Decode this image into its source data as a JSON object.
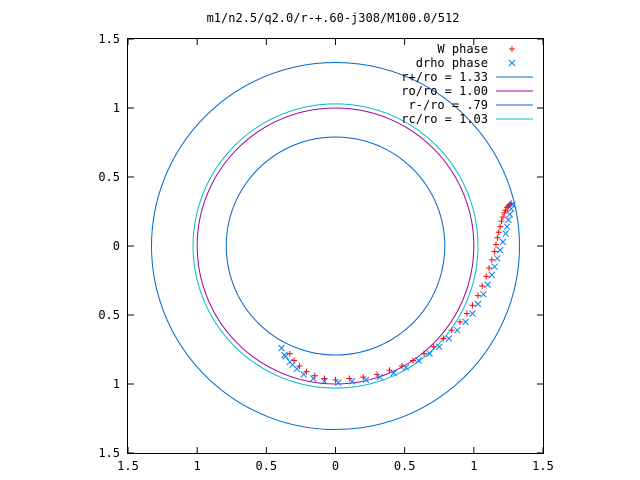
{
  "chart_data": {
    "type": "line",
    "title": "m1/n2.5/q2.0/r-+.60-j308/M100.0/512",
    "xlabel": "",
    "ylabel": "",
    "xlim": [
      -1.5,
      1.5
    ],
    "ylim": [
      -1.5,
      1.5
    ],
    "grid": false,
    "legend_position": "top-right",
    "x_ticks": [
      {
        "value": -1.5,
        "label": "1.5"
      },
      {
        "value": -1.0,
        "label": "1"
      },
      {
        "value": -0.5,
        "label": "0.5"
      },
      {
        "value": 0.0,
        "label": "0"
      },
      {
        "value": 0.5,
        "label": "0.5"
      },
      {
        "value": 1.0,
        "label": "1"
      },
      {
        "value": 1.5,
        "label": "1.5"
      }
    ],
    "y_ticks": [
      {
        "value": 1.5,
        "label": "1.5"
      },
      {
        "value": 1.0,
        "label": "1"
      },
      {
        "value": 0.5,
        "label": "0.5"
      },
      {
        "value": 0.0,
        "label": "0"
      },
      {
        "value": -0.5,
        "label": "0.5"
      },
      {
        "value": -1.0,
        "label": "1"
      },
      {
        "value": -1.5,
        "label": "1.5"
      }
    ],
    "series": [
      {
        "name": "W phase",
        "kind": "points",
        "marker": "+",
        "color": "#ff0000",
        "points": [
          [
            1.27,
            0.31
          ],
          [
            1.26,
            0.3
          ],
          [
            1.25,
            0.29
          ],
          [
            1.24,
            0.28
          ],
          [
            1.23,
            0.26
          ],
          [
            1.22,
            0.24
          ],
          [
            1.21,
            0.21
          ],
          [
            1.2,
            0.18
          ],
          [
            1.19,
            0.14
          ],
          [
            1.18,
            0.1
          ],
          [
            1.17,
            0.06
          ],
          [
            1.16,
            0.01
          ],
          [
            1.15,
            -0.04
          ],
          [
            1.13,
            -0.1
          ],
          [
            1.11,
            -0.16
          ],
          [
            1.09,
            -0.22
          ],
          [
            1.06,
            -0.29
          ],
          [
            1.03,
            -0.36
          ],
          [
            0.99,
            -0.43
          ],
          [
            0.95,
            -0.49
          ],
          [
            0.9,
            -0.55
          ],
          [
            0.84,
            -0.61
          ],
          [
            0.78,
            -0.67
          ],
          [
            0.71,
            -0.73
          ],
          [
            0.64,
            -0.78
          ],
          [
            0.56,
            -0.83
          ],
          [
            0.48,
            -0.87
          ],
          [
            0.39,
            -0.9
          ],
          [
            0.3,
            -0.93
          ],
          [
            0.2,
            -0.95
          ],
          [
            0.1,
            -0.96
          ],
          [
            0.0,
            -0.97
          ],
          [
            -0.08,
            -0.96
          ],
          [
            -0.15,
            -0.94
          ],
          [
            -0.21,
            -0.91
          ],
          [
            -0.26,
            -0.87
          ],
          [
            -0.3,
            -0.83
          ],
          [
            -0.33,
            -0.78
          ]
        ]
      },
      {
        "name": "drho phase",
        "kind": "points",
        "marker": "x",
        "color": "#0080ff",
        "points": [
          [
            1.28,
            0.3
          ],
          [
            1.27,
            0.27
          ],
          [
            1.26,
            0.23
          ],
          [
            1.25,
            0.19
          ],
          [
            1.24,
            0.14
          ],
          [
            1.23,
            0.09
          ],
          [
            1.21,
            0.03
          ],
          [
            1.19,
            -0.03
          ],
          [
            1.17,
            -0.09
          ],
          [
            1.15,
            -0.15
          ],
          [
            1.13,
            -0.21
          ],
          [
            1.1,
            -0.28
          ],
          [
            1.07,
            -0.35
          ],
          [
            1.03,
            -0.42
          ],
          [
            0.99,
            -0.49
          ],
          [
            0.94,
            -0.55
          ],
          [
            0.88,
            -0.61
          ],
          [
            0.82,
            -0.67
          ],
          [
            0.75,
            -0.73
          ],
          [
            0.68,
            -0.78
          ],
          [
            0.6,
            -0.83
          ],
          [
            0.51,
            -0.88
          ],
          [
            0.42,
            -0.92
          ],
          [
            0.32,
            -0.95
          ],
          [
            0.22,
            -0.97
          ],
          [
            0.12,
            -0.98
          ],
          [
            0.02,
            -0.99
          ],
          [
            -0.08,
            -0.98
          ],
          [
            -0.16,
            -0.96
          ],
          [
            -0.23,
            -0.93
          ],
          [
            -0.28,
            -0.89
          ],
          [
            -0.33,
            -0.84
          ],
          [
            -0.37,
            -0.79
          ],
          [
            -0.39,
            -0.74
          ],
          [
            -0.36,
            -0.8
          ],
          [
            -0.31,
            -0.86
          ]
        ]
      },
      {
        "name": "r+/ro = 1.33",
        "kind": "circle",
        "radius": 1.33,
        "color": "#0066cc"
      },
      {
        "name": "ro/ro = 1.00",
        "kind": "circle",
        "radius": 1.0,
        "color": "#a000a0"
      },
      {
        "name": "r-/ro = .79",
        "kind": "circle",
        "radius": 0.79,
        "color": "#0066cc"
      },
      {
        "name": "rc/ro = 1.03",
        "kind": "circle",
        "radius": 1.03,
        "color": "#00c0c0"
      }
    ]
  }
}
